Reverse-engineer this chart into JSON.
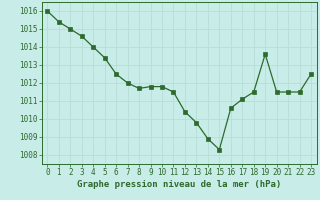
{
  "x": [
    0,
    1,
    2,
    3,
    4,
    5,
    6,
    7,
    8,
    9,
    10,
    11,
    12,
    13,
    14,
    15,
    16,
    17,
    18,
    19,
    20,
    21,
    22,
    23
  ],
  "y": [
    1016.0,
    1015.4,
    1015.0,
    1014.6,
    1014.0,
    1013.4,
    1012.5,
    1012.0,
    1011.7,
    1011.8,
    1011.8,
    1011.5,
    1010.4,
    1009.8,
    1008.9,
    1008.3,
    1010.6,
    1011.1,
    1011.5,
    1013.6,
    1011.5,
    1011.5,
    1011.5,
    1012.5
  ],
  "line_color": "#2d6a2d",
  "marker": "s",
  "markersize": 2.2,
  "background_color": "#c8ece8",
  "grid_color": "#b8dcd8",
  "ylabel_ticks": [
    1008,
    1009,
    1010,
    1011,
    1012,
    1013,
    1014,
    1015,
    1016
  ],
  "xlabel": "Graphe pression niveau de la mer (hPa)",
  "ylim": [
    1007.5,
    1016.5
  ],
  "xlim": [
    -0.5,
    23.5
  ],
  "label_color": "#2d6a2d",
  "xlabel_fontsize": 6.5,
  "tick_fontsize": 5.5,
  "linewidth": 0.9
}
